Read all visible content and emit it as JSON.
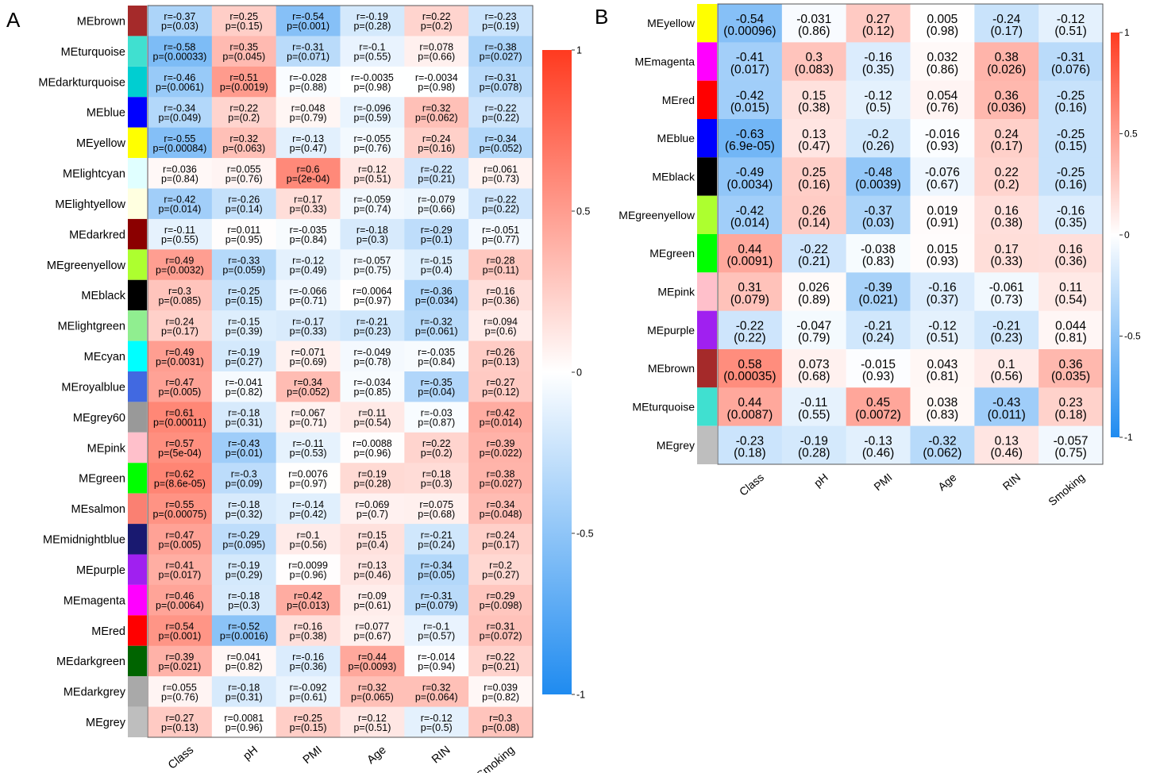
{
  "chart_data": [
    {
      "type": "heatmap",
      "panel_label": "A",
      "rows": [
        "MEbrown",
        "MEturquoise",
        "MEdarkturquoise",
        "MEblue",
        "MEyellow",
        "MElightcyan",
        "MElightyellow",
        "MEdarkred",
        "MEgreenyellow",
        "MEblack",
        "MElightgreen",
        "MEcyan",
        "MEroyalblue",
        "MEgrey60",
        "MEpink",
        "MEgreen",
        "MEsalmon",
        "MEmidnightblue",
        "MEpurple",
        "MEmagenta",
        "MEred",
        "MEdarkgreen",
        "MEdarkgrey",
        "MEgrey"
      ],
      "row_colors": [
        "#A52A2A",
        "#40E0D0",
        "#00CED1",
        "#0000FF",
        "#FFFF00",
        "#E0FFFF",
        "#FFFFE0",
        "#8B0000",
        "#ADFF2F",
        "#000000",
        "#90EE90",
        "#00FFFF",
        "#4169E1",
        "#999999",
        "#FFC0CB",
        "#00FF00",
        "#FA8072",
        "#191970",
        "#A020F0",
        "#FF00FF",
        "#FF0000",
        "#006400",
        "#A9A9A9",
        "#BEBEBE"
      ],
      "columns": [
        "Class",
        "pH",
        "PMI",
        "Age",
        "RIN",
        "Smoking"
      ],
      "r": [
        [
          "-0.37",
          "0.25",
          "-0.54",
          "-0.19",
          "0.22",
          "-0.23"
        ],
        [
          "-0.58",
          "0.35",
          "-0.31",
          "-0.1",
          "0.078",
          "-0.38"
        ],
        [
          "-0.46",
          "0.51",
          "-0.028",
          "-0.0035",
          "-0.0034",
          "-0.31"
        ],
        [
          "-0.34",
          "0.22",
          "0.048",
          "-0.096",
          "0.32",
          "-0.22"
        ],
        [
          "-0.55",
          "0.32",
          "-0.13",
          "-0.055",
          "0.24",
          "-0.34"
        ],
        [
          "0.036",
          "0.055",
          "0.6",
          "0.12",
          "-0.22",
          "0.061"
        ],
        [
          "-0.42",
          "-0.26",
          "0.17",
          "-0.059",
          "-0.079",
          "-0.22"
        ],
        [
          "-0.11",
          "0.011",
          "-0.035",
          "-0.18",
          "-0.29",
          "-0.051"
        ],
        [
          "0.49",
          "-0.33",
          "-0.12",
          "-0.057",
          "-0.15",
          "0.28"
        ],
        [
          "0.3",
          "-0.25",
          "-0.066",
          "0.0064",
          "-0.36",
          "0.16"
        ],
        [
          "0.24",
          "-0.15",
          "-0.17",
          "-0.21",
          "-0.32",
          "0.094"
        ],
        [
          "0.49",
          "-0.19",
          "0.071",
          "-0.049",
          "-0.035",
          "0.26"
        ],
        [
          "0.47",
          "-0.041",
          "0.34",
          "-0.034",
          "-0.35",
          "0.27"
        ],
        [
          "0.61",
          "-0.18",
          "0.067",
          "0.11",
          "-0.03",
          "0.42"
        ],
        [
          "0.57",
          "-0.43",
          "-0.11",
          "0.0088",
          "0.22",
          "0.39"
        ],
        [
          "0.62",
          "-0.3",
          "0.0076",
          "0.19",
          "0.18",
          "0.38"
        ],
        [
          "0.55",
          "-0.18",
          "-0.14",
          "0.069",
          "0.075",
          "0.34"
        ],
        [
          "0.47",
          "-0.29",
          "0.1",
          "0.15",
          "-0.21",
          "0.24"
        ],
        [
          "0.41",
          "-0.19",
          "0.0099",
          "0.13",
          "-0.34",
          "0.2"
        ],
        [
          "0.46",
          "-0.18",
          "0.42",
          "0.09",
          "-0.31",
          "0.29"
        ],
        [
          "0.54",
          "-0.52",
          "0.16",
          "0.077",
          "-0.1",
          "0.31"
        ],
        [
          "0.39",
          "0.041",
          "-0.16",
          "0.44",
          "-0.014",
          "0.22"
        ],
        [
          "0.055",
          "-0.18",
          "-0.092",
          "0.32",
          "0.32",
          "0.039"
        ],
        [
          "0.27",
          "0.0081",
          "0.25",
          "0.12",
          "-0.12",
          "0.3"
        ]
      ],
      "p": [
        [
          "0.03",
          "0.15",
          "0.001",
          "0.28",
          "0.2",
          "0.19"
        ],
        [
          "0.00033",
          "0.045",
          "0.071",
          "0.55",
          "0.66",
          "0.027"
        ],
        [
          "0.0061",
          "0.0019",
          "0.88",
          "0.98",
          "0.98",
          "0.078"
        ],
        [
          "0.049",
          "0.2",
          "0.79",
          "0.59",
          "0.062",
          "0.22"
        ],
        [
          "0.00084",
          "0.063",
          "0.47",
          "0.76",
          "0.16",
          "0.052"
        ],
        [
          "0.84",
          "0.76",
          "2e-04",
          "0.51",
          "0.21",
          "0.73"
        ],
        [
          "0.014",
          "0.14",
          "0.33",
          "0.74",
          "0.66",
          "0.22"
        ],
        [
          "0.55",
          "0.95",
          "0.84",
          "0.3",
          "0.1",
          "0.77"
        ],
        [
          "0.0032",
          "0.059",
          "0.49",
          "0.75",
          "0.4",
          "0.11"
        ],
        [
          "0.085",
          "0.15",
          "0.71",
          "0.97",
          "0.034",
          "0.36"
        ],
        [
          "0.17",
          "0.39",
          "0.33",
          "0.23",
          "0.061",
          "0.6"
        ],
        [
          "0.0031",
          "0.27",
          "0.69",
          "0.78",
          "0.84",
          "0.13"
        ],
        [
          "0.005",
          "0.82",
          "0.052",
          "0.85",
          "0.04",
          "0.12"
        ],
        [
          "0.00011",
          "0.31",
          "0.71",
          "0.54",
          "0.87",
          "0.014"
        ],
        [
          "5e-04",
          "0.01",
          "0.53",
          "0.96",
          "0.2",
          "0.022"
        ],
        [
          "8.6e-05",
          "0.09",
          "0.97",
          "0.28",
          "0.3",
          "0.027"
        ],
        [
          "0.00075",
          "0.32",
          "0.42",
          "0.7",
          "0.68",
          "0.048"
        ],
        [
          "0.005",
          "0.095",
          "0.56",
          "0.4",
          "0.24",
          "0.17"
        ],
        [
          "0.017",
          "0.29",
          "0.96",
          "0.46",
          "0.05",
          "0.27"
        ],
        [
          "0.0064",
          "0.3",
          "0.013",
          "0.61",
          "0.079",
          "0.098"
        ],
        [
          "0.001",
          "0.0016",
          "0.38",
          "0.67",
          "0.57",
          "0.072"
        ],
        [
          "0.021",
          "0.82",
          "0.36",
          "0.0093",
          "0.94",
          "0.21"
        ],
        [
          "0.76",
          "0.31",
          "0.61",
          "0.065",
          "0.064",
          "0.82"
        ],
        [
          "0.13",
          "0.96",
          "0.15",
          "0.51",
          "0.5",
          "0.08"
        ]
      ],
      "cell_format": "rp",
      "colorbar": {
        "ticks": [
          "1",
          "0.5",
          "0",
          "-0.5",
          "-1"
        ],
        "range": [
          -1,
          1
        ]
      }
    },
    {
      "type": "heatmap",
      "panel_label": "B",
      "rows": [
        "MEyellow",
        "MEmagenta",
        "MEred",
        "MEblue",
        "MEblack",
        "MEgreenyellow",
        "MEgreen",
        "MEpink",
        "MEpurple",
        "MEbrown",
        "MEturquoise",
        "MEgrey"
      ],
      "row_colors": [
        "#FFFF00",
        "#FF00FF",
        "#FF0000",
        "#0000FF",
        "#000000",
        "#ADFF2F",
        "#00FF00",
        "#FFC0CB",
        "#A020F0",
        "#A52A2A",
        "#40E0D0",
        "#BEBEBE"
      ],
      "columns": [
        "Class",
        "pH",
        "PMI",
        "Age",
        "RIN",
        "Smoking"
      ],
      "r": [
        [
          "-0.54",
          "-0.031",
          "0.27",
          "0.005",
          "-0.24",
          "-0.12"
        ],
        [
          "-0.41",
          "0.3",
          "-0.16",
          "0.032",
          "0.38",
          "-0.31"
        ],
        [
          "-0.42",
          "0.15",
          "-0.12",
          "0.054",
          "0.36",
          "-0.25"
        ],
        [
          "-0.63",
          "0.13",
          "-0.2",
          "-0.016",
          "0.24",
          "-0.25"
        ],
        [
          "-0.49",
          "0.25",
          "-0.48",
          "-0.076",
          "0.22",
          "-0.25"
        ],
        [
          "-0.42",
          "0.26",
          "-0.37",
          "0.019",
          "0.16",
          "-0.16"
        ],
        [
          "0.44",
          "-0.22",
          "-0.038",
          "0.015",
          "0.17",
          "0.16"
        ],
        [
          "0.31",
          "0.026",
          "-0.39",
          "-0.16",
          "-0.061",
          "0.11"
        ],
        [
          "-0.22",
          "-0.047",
          "-0.21",
          "-0.12",
          "-0.21",
          "0.044"
        ],
        [
          "0.58",
          "0.073",
          "-0.015",
          "0.043",
          "0.1",
          "0.36"
        ],
        [
          "0.44",
          "-0.11",
          "0.45",
          "0.038",
          "-0.43",
          "0.23"
        ],
        [
          "-0.23",
          "-0.19",
          "-0.13",
          "-0.32",
          "0.13",
          "-0.057"
        ]
      ],
      "p": [
        [
          "0.00096",
          "0.86",
          "0.12",
          "0.98",
          "0.17",
          "0.51"
        ],
        [
          "0.017",
          "0.083",
          "0.35",
          "0.86",
          "0.026",
          "0.076"
        ],
        [
          "0.015",
          "0.38",
          "0.5",
          "0.76",
          "0.036",
          "0.16"
        ],
        [
          "6.9e-05",
          "0.47",
          "0.26",
          "0.93",
          "0.17",
          "0.15"
        ],
        [
          "0.0034",
          "0.16",
          "0.0039",
          "0.67",
          "0.2",
          "0.16"
        ],
        [
          "0.014",
          "0.14",
          "0.03",
          "0.91",
          "0.38",
          "0.35"
        ],
        [
          "0.0091",
          "0.21",
          "0.83",
          "0.93",
          "0.33",
          "0.36"
        ],
        [
          "0.079",
          "0.89",
          "0.021",
          "0.37",
          "0.73",
          "0.54"
        ],
        [
          "0.22",
          "0.79",
          "0.24",
          "0.51",
          "0.23",
          "0.81"
        ],
        [
          "0.00035",
          "0.68",
          "0.93",
          "0.81",
          "0.56",
          "0.035"
        ],
        [
          "0.0087",
          "0.55",
          "0.0072",
          "0.83",
          "0.011",
          "0.18"
        ],
        [
          "0.18",
          "0.28",
          "0.46",
          "0.062",
          "0.46",
          "0.75"
        ]
      ],
      "cell_format": "paren",
      "colorbar": {
        "ticks": [
          "1",
          "0.5",
          "0",
          "-0.5",
          "-1"
        ],
        "range": [
          -1,
          1
        ]
      }
    }
  ],
  "colors": {
    "positive": "#ff3a1f",
    "zero": "#ffffff",
    "negative": "#1f8bf0"
  }
}
